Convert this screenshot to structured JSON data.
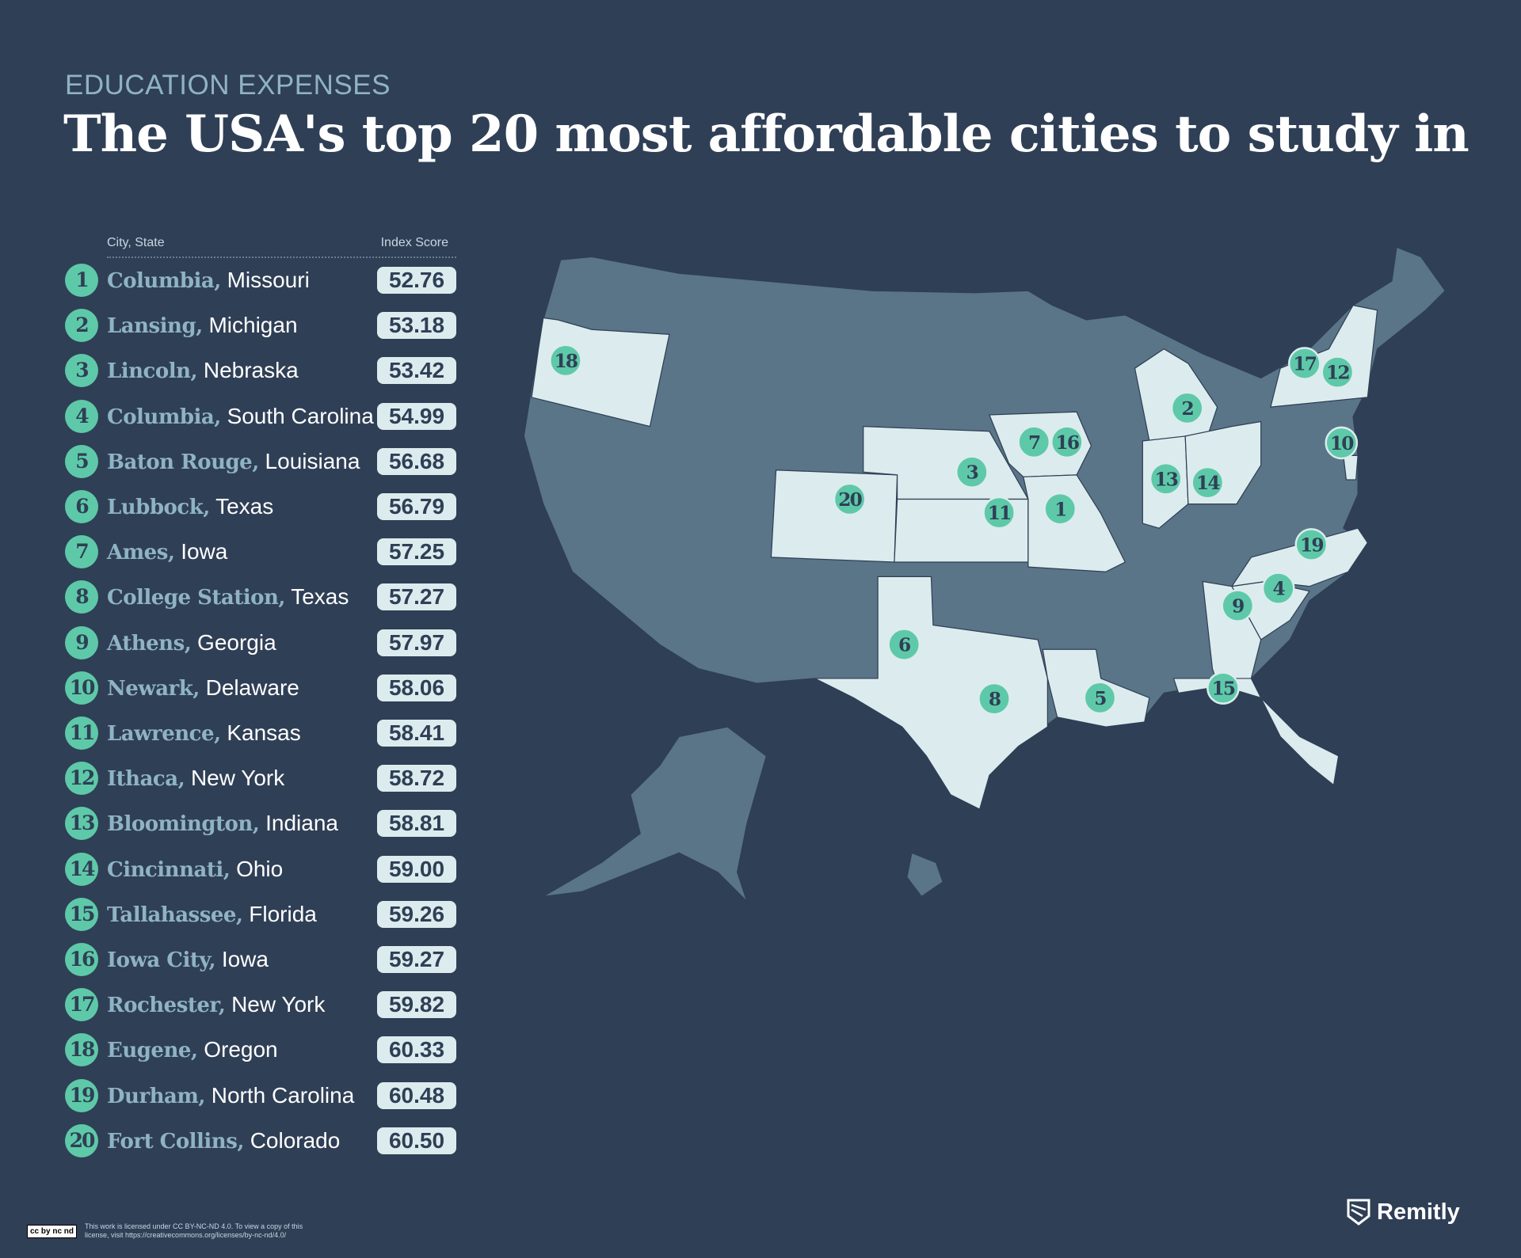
{
  "header": {
    "kicker": "EDUCATION EXPENSES",
    "title": "The USA's top 20 most affordable cities to study in"
  },
  "table": {
    "col_city": "City, State",
    "col_score": "Index Score",
    "rows": [
      {
        "rank": "1",
        "city": "Columbia,",
        "state": "Missouri",
        "score": "52.76"
      },
      {
        "rank": "2",
        "city": "Lansing,",
        "state": "Michigan",
        "score": "53.18"
      },
      {
        "rank": "3",
        "city": "Lincoln,",
        "state": "Nebraska",
        "score": "53.42"
      },
      {
        "rank": "4",
        "city": "Columbia,",
        "state": "South Carolina",
        "score": "54.99"
      },
      {
        "rank": "5",
        "city": "Baton Rouge,",
        "state": "Louisiana",
        "score": "56.68"
      },
      {
        "rank": "6",
        "city": "Lubbock,",
        "state": "Texas",
        "score": "56.79"
      },
      {
        "rank": "7",
        "city": "Ames,",
        "state": "Iowa",
        "score": "57.25"
      },
      {
        "rank": "8",
        "city": "College Station,",
        "state": "Texas",
        "score": "57.27"
      },
      {
        "rank": "9",
        "city": "Athens,",
        "state": "Georgia",
        "score": "57.97"
      },
      {
        "rank": "10",
        "city": "Newark,",
        "state": "Delaware",
        "score": "58.06"
      },
      {
        "rank": "11",
        "city": "Lawrence,",
        "state": "Kansas",
        "score": "58.41"
      },
      {
        "rank": "12",
        "city": "Ithaca,",
        "state": "New York",
        "score": "58.72"
      },
      {
        "rank": "13",
        "city": "Bloomington,",
        "state": "Indiana",
        "score": "58.81"
      },
      {
        "rank": "14",
        "city": "Cincinnati,",
        "state": "Ohio",
        "score": "59.00"
      },
      {
        "rank": "15",
        "city": "Tallahassee,",
        "state": "Florida",
        "score": "59.26"
      },
      {
        "rank": "16",
        "city": "Iowa City,",
        "state": "Iowa",
        "score": "59.27"
      },
      {
        "rank": "17",
        "city": "Rochester,",
        "state": "New York",
        "score": "59.82"
      },
      {
        "rank": "18",
        "city": "Eugene,",
        "state": "Oregon",
        "score": "60.33"
      },
      {
        "rank": "19",
        "city": "Durham,",
        "state": "North Carolina",
        "score": "60.48"
      },
      {
        "rank": "20",
        "city": "Fort Collins,",
        "state": "Colorado",
        "score": "60.50"
      }
    ]
  },
  "map": {
    "highlighted_states": [
      "Oregon",
      "Colorado",
      "Nebraska",
      "Kansas",
      "Iowa",
      "Missouri",
      "Texas",
      "Louisiana",
      "Michigan",
      "Indiana",
      "Ohio",
      "Delaware",
      "New York",
      "North Carolina",
      "South Carolina",
      "Georgia",
      "Florida"
    ],
    "colors": {
      "background": "#2f3f56",
      "state": "#5a7587",
      "highlight": "#dcecee",
      "marker": "#5ec9a8"
    }
  },
  "footer": {
    "cc_badge": "cc by nc nd",
    "license": "This work is licensed under CC BY-NC-ND 4.0. To view a copy of this license, visit https://creativecommons.org/licenses/by-nc-nd/4.0/",
    "brand": "Remitly"
  }
}
